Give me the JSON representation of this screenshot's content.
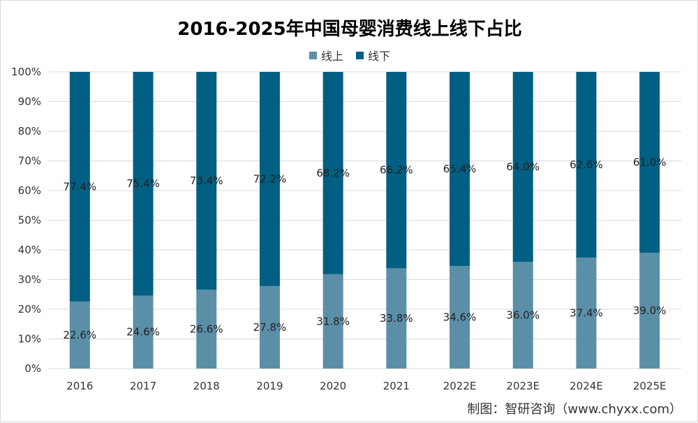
{
  "chart_data": {
    "type": "bar",
    "stacked": true,
    "title": "2016-2025年中国母婴消费线上线下占比",
    "categories": [
      "2016",
      "2017",
      "2018",
      "2019",
      "2020",
      "2021",
      "2022E",
      "2023E",
      "2024E",
      "2025E"
    ],
    "series": [
      {
        "name": "线上",
        "color": "#5b8fa8",
        "values": [
          22.6,
          24.6,
          26.6,
          27.8,
          31.8,
          33.8,
          34.6,
          36.0,
          37.4,
          39.0
        ],
        "labels": [
          "22.6%",
          "24.6%",
          "26.6%",
          "27.8%",
          "31.8%",
          "33.8%",
          "34.6%",
          "36.0%",
          "37.4%",
          "39.0%"
        ]
      },
      {
        "name": "线下",
        "color": "#005f82",
        "values": [
          77.4,
          75.4,
          73.4,
          72.2,
          68.2,
          66.2,
          65.4,
          64.0,
          62.6,
          61.0
        ],
        "labels": [
          "77.4%",
          "75.4%",
          "73.4%",
          "72.2%",
          "68.2%",
          "66.2%",
          "65.4%",
          "64.0%",
          "62.6%",
          "61.0%"
        ]
      }
    ],
    "ylim": [
      0,
      100
    ],
    "yticks": [
      "0%",
      "10%",
      "20%",
      "30%",
      "40%",
      "50%",
      "60%",
      "70%",
      "80%",
      "90%",
      "100%"
    ],
    "grid": true,
    "legend_position": "top"
  },
  "source": "制图：智研咨询（www.chyxx.com）"
}
